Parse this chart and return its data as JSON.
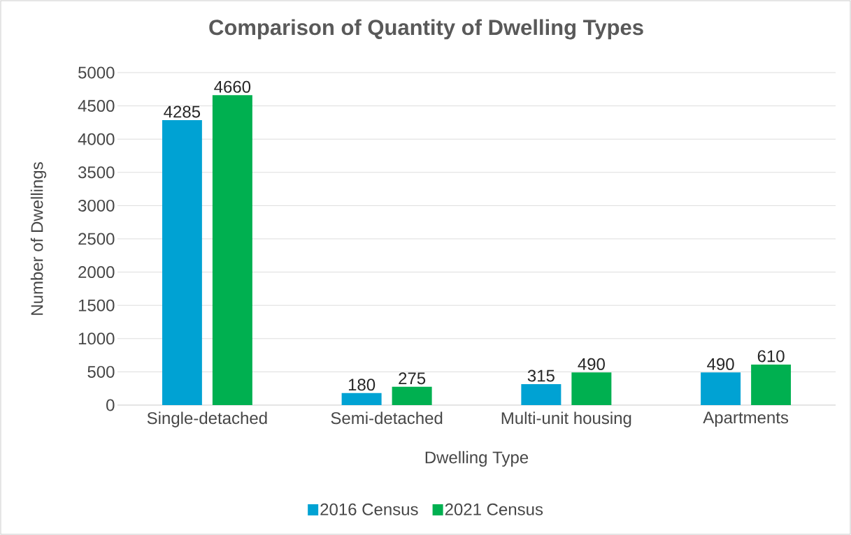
{
  "chart_data": {
    "type": "bar",
    "title": "Comparison of Quantity of Dwelling Types",
    "xlabel": "Dwelling Type",
    "ylabel": "Number of Dwellings",
    "categories": [
      "Single-detached",
      "Semi-detached",
      "Multi-unit housing",
      "Apartments"
    ],
    "series": [
      {
        "name": "2016 Census",
        "color": "#00a2d3",
        "values": [
          4285,
          180,
          315,
          490
        ]
      },
      {
        "name": "2021 Census",
        "color": "#00b050",
        "values": [
          4660,
          275,
          490,
          610
        ]
      }
    ],
    "ylim": [
      0,
      5000
    ],
    "yticks": [
      0,
      500,
      1000,
      1500,
      2000,
      2500,
      3000,
      3500,
      4000,
      4500,
      5000
    ],
    "grid": "y",
    "legend": "bottom",
    "data_labels": true
  }
}
